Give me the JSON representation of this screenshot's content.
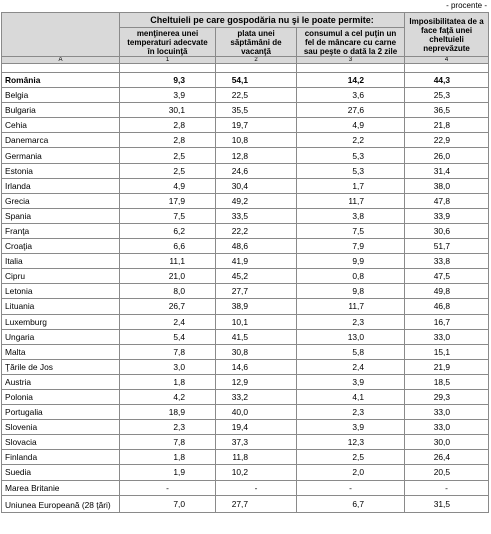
{
  "unit_note": "- procente -",
  "header": {
    "group_title": "Cheltuieli pe care gospodăria nu şi le poate permite:",
    "col1": "menţinerea unei temperaturi adecvate în locuinţă",
    "col2": "plata unei săptămâni de vacanţă",
    "col3": "consumul a cel puţin un fel de mâncare cu carne sau peşte o dată la 2 zile",
    "col4": "Imposibilitatea de a face faţă unei cheltuieli neprevăzute"
  },
  "index_row": [
    "A",
    "1",
    "2",
    "3",
    "4"
  ],
  "rows": [
    {
      "country": "România",
      "v1": "9,3",
      "v2": "54,1",
      "v3": "14,2",
      "v4": "44,3"
    },
    {
      "country": "Belgia",
      "v1": "3,9",
      "v2": "22,5",
      "v3": "3,6",
      "v4": "25,3"
    },
    {
      "country": "Bulgaria",
      "v1": "30,1",
      "v2": "35,5",
      "v3": "27,6",
      "v4": "36,5"
    },
    {
      "country": "Cehia",
      "v1": "2,8",
      "v2": "19,7",
      "v3": "4,9",
      "v4": "21,8"
    },
    {
      "country": "Danemarca",
      "v1": "2,8",
      "v2": "10,8",
      "v3": "2,2",
      "v4": "22,9"
    },
    {
      "country": "Germania",
      "v1": "2,5",
      "v2": "12,8",
      "v3": "5,3",
      "v4": "26,0"
    },
    {
      "country": "Estonia",
      "v1": "2,5",
      "v2": "24,6",
      "v3": "5,3",
      "v4": "31,4"
    },
    {
      "country": "Irlanda",
      "v1": "4,9",
      "v2": "30,4",
      "v3": "1,7",
      "v4": "38,0"
    },
    {
      "country": "Grecia",
      "v1": "17,9",
      "v2": "49,2",
      "v3": "11,7",
      "v4": "47,8"
    },
    {
      "country": "Spania",
      "v1": "7,5",
      "v2": "33,5",
      "v3": "3,8",
      "v4": "33,9"
    },
    {
      "country": "Franţa",
      "v1": "6,2",
      "v2": "22,2",
      "v3": "7,5",
      "v4": "30,6"
    },
    {
      "country": "Croaţia",
      "v1": "6,6",
      "v2": "48,6",
      "v3": "7,9",
      "v4": "51,7"
    },
    {
      "country": "Italia",
      "v1": "11,1",
      "v2": "41,9",
      "v3": "9,9",
      "v4": "33,8"
    },
    {
      "country": "Cipru",
      "v1": "21,0",
      "v2": "45,2",
      "v3": "0,8",
      "v4": "47,5"
    },
    {
      "country": "Letonia",
      "v1": "8,0",
      "v2": "27,7",
      "v3": "9,8",
      "v4": "49,8"
    },
    {
      "country": "Lituania",
      "v1": "26,7",
      "v2": "38,9",
      "v3": "11,7",
      "v4": "46,8"
    },
    {
      "country": "Luxemburg",
      "v1": "2,4",
      "v2": "10,1",
      "v3": "2,3",
      "v4": "16,7"
    },
    {
      "country": "Ungaria",
      "v1": "5,4",
      "v2": "41,5",
      "v3": "13,0",
      "v4": "33,0"
    },
    {
      "country": "Malta",
      "v1": "7,8",
      "v2": "30,8",
      "v3": "5,8",
      "v4": "15,1"
    },
    {
      "country": "Ţările de Jos",
      "v1": "3,0",
      "v2": "14,6",
      "v3": "2,4",
      "v4": "21,9"
    },
    {
      "country": "Austria",
      "v1": "1,8",
      "v2": "12,9",
      "v3": "3,9",
      "v4": "18,5"
    },
    {
      "country": "Polonia",
      "v1": "4,2",
      "v2": "33,2",
      "v3": "4,1",
      "v4": "29,3"
    },
    {
      "country": "Portugalia",
      "v1": "18,9",
      "v2": "40,0",
      "v3": "2,3",
      "v4": "33,0"
    },
    {
      "country": "Slovenia",
      "v1": "2,3",
      "v2": "19,4",
      "v3": "3,9",
      "v4": "33,0"
    },
    {
      "country": "Slovacia",
      "v1": "7,8",
      "v2": "37,3",
      "v3": "12,3",
      "v4": "30,0"
    },
    {
      "country": "Finlanda",
      "v1": "1,8",
      "v2": "11,8",
      "v3": "2,5",
      "v4": "26,4"
    },
    {
      "country": "Suedia",
      "v1": "1,9",
      "v2": "10,2",
      "v3": "2,0",
      "v4": "20,5"
    },
    {
      "country": "Marea Britanie",
      "v1": "-",
      "v2": "-",
      "v3": "-",
      "v4": "-"
    },
    {
      "country": "Uniunea Europeană (28 ţări)",
      "v1": "7,0",
      "v2": "27,7",
      "v3": "6,7",
      "v4": "31,5"
    }
  ]
}
